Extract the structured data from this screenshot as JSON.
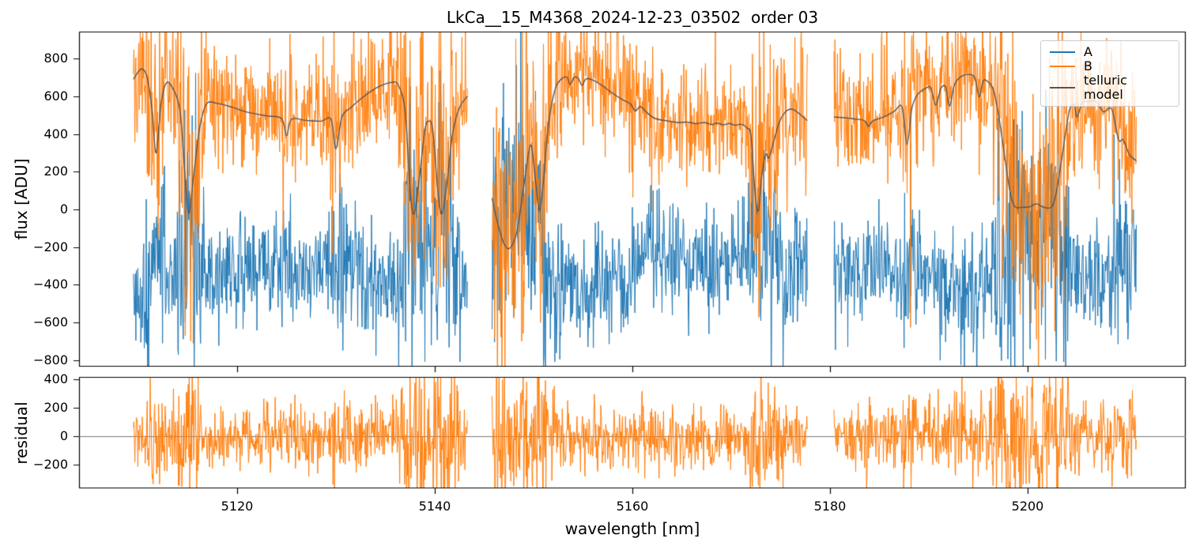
{
  "chart_data": {
    "type": "line",
    "title": "LkCa__15_M4368_2024-12-23_03502  order 03",
    "xlabel": "wavelength [nm]",
    "ylabel_top": "flux [ADU]",
    "ylabel_bottom": "residual",
    "xlim": [
      5104,
      5216
    ],
    "x_ticks": [
      5120,
      5140,
      5160,
      5180,
      5200
    ],
    "top_panel": {
      "ylim": [
        -834,
        943
      ],
      "y_ticks": [
        800,
        600,
        400,
        200,
        0,
        -200,
        -400,
        -600,
        -800
      ]
    },
    "bottom_panel": {
      "ylim": [
        -364,
        419
      ],
      "y_ticks": [
        400,
        200,
        0,
        -200
      ],
      "zero_line": true,
      "zero_line_color": "#777777"
    },
    "wavelength_segments_nm": [
      [
        5109.5,
        5143.3
      ],
      [
        5145.8,
        5177.7
      ],
      [
        5180.4,
        5211.0
      ]
    ],
    "legend": {
      "location": "upper right",
      "items": [
        {
          "label": "A",
          "color": "#1f77b4"
        },
        {
          "label": "B",
          "color": "#ff7f0e"
        },
        {
          "label": "telluric model",
          "color": "#555555"
        }
      ]
    },
    "series": [
      {
        "name": "A",
        "color": "#1f77b4",
        "kind": "noisy",
        "base": "mirror_telluric",
        "mirror_scale": -0.6,
        "mirror_offset": -10,
        "noise_sigma": 135
      },
      {
        "name": "B",
        "color": "#ff7f0e",
        "kind": "noisy",
        "base": "telluric",
        "noise_sigma": 150
      },
      {
        "name": "telluric model",
        "color": "#555555",
        "kind": "smooth"
      }
    ],
    "telluric_model_points_by_segment": [
      [
        [
          5109.5,
          690
        ],
        [
          5110.3,
          745
        ],
        [
          5110.9,
          700
        ],
        [
          5111.4,
          520
        ],
        [
          5111.8,
          300
        ],
        [
          5112.3,
          560
        ],
        [
          5112.8,
          668
        ],
        [
          5113.4,
          650
        ],
        [
          5114.2,
          530
        ],
        [
          5114.7,
          200
        ],
        [
          5115.1,
          -20
        ],
        [
          5115.6,
          180
        ],
        [
          5116.2,
          430
        ],
        [
          5116.9,
          560
        ],
        [
          5118,
          562
        ],
        [
          5119.5,
          542
        ],
        [
          5121,
          516
        ],
        [
          5123,
          496
        ],
        [
          5124.5,
          482
        ],
        [
          5125,
          390
        ],
        [
          5125.5,
          478
        ],
        [
          5127,
          472
        ],
        [
          5128.5,
          468
        ],
        [
          5129.5,
          478
        ],
        [
          5130,
          322
        ],
        [
          5130.6,
          490
        ],
        [
          5131.5,
          540
        ],
        [
          5132.5,
          586
        ],
        [
          5133.5,
          625
        ],
        [
          5134.5,
          655
        ],
        [
          5135.6,
          673
        ],
        [
          5136.3,
          660
        ],
        [
          5137,
          520
        ],
        [
          5137.5,
          105
        ],
        [
          5137.9,
          -25
        ],
        [
          5138.4,
          150
        ],
        [
          5139,
          420
        ],
        [
          5139.4,
          468
        ],
        [
          5139.8,
          420
        ],
        [
          5140.3,
          105
        ],
        [
          5140.7,
          -25
        ],
        [
          5141.2,
          125
        ],
        [
          5141.8,
          400
        ],
        [
          5142.5,
          540
        ],
        [
          5143.3,
          600
        ]
      ],
      [
        [
          5145.8,
          60
        ],
        [
          5146.3,
          -60
        ],
        [
          5147,
          -180
        ],
        [
          5147.6,
          -205
        ],
        [
          5148.3,
          -120
        ],
        [
          5149,
          120
        ],
        [
          5149.7,
          342
        ],
        [
          5150.2,
          150
        ],
        [
          5150.6,
          -8
        ],
        [
          5151,
          150
        ],
        [
          5151.5,
          450
        ],
        [
          5152.2,
          640
        ],
        [
          5152.9,
          695
        ],
        [
          5153.4,
          700
        ],
        [
          5153.7,
          662
        ],
        [
          5154.1,
          700
        ],
        [
          5154.5,
          697
        ],
        [
          5154.9,
          658
        ],
        [
          5155.3,
          692
        ],
        [
          5156,
          686
        ],
        [
          5157,
          655
        ],
        [
          5158,
          616
        ],
        [
          5159,
          582
        ],
        [
          5159.8,
          560
        ],
        [
          5160.3,
          522
        ],
        [
          5160.8,
          546
        ],
        [
          5161.5,
          512
        ],
        [
          5162.3,
          482
        ],
        [
          5163.5,
          470
        ],
        [
          5164.6,
          461
        ],
        [
          5165.5,
          463
        ],
        [
          5166.5,
          455
        ],
        [
          5167.3,
          461
        ],
        [
          5168,
          450
        ],
        [
          5168.6,
          458
        ],
        [
          5169.2,
          448
        ],
        [
          5169.8,
          456
        ],
        [
          5170.4,
          446
        ],
        [
          5171,
          452
        ],
        [
          5171.6,
          432
        ],
        [
          5172,
          390
        ],
        [
          5172.4,
          100
        ],
        [
          5172.75,
          -8
        ],
        [
          5173.1,
          180
        ],
        [
          5173.5,
          292
        ],
        [
          5173.8,
          272
        ],
        [
          5174.2,
          340
        ],
        [
          5174.8,
          452
        ],
        [
          5175.4,
          512
        ],
        [
          5176.1,
          532
        ],
        [
          5176.8,
          512
        ],
        [
          5177.7,
          470
        ]
      ],
      [
        [
          5180.4,
          490
        ],
        [
          5181.5,
          486
        ],
        [
          5182.5,
          480
        ],
        [
          5183.5,
          470
        ],
        [
          5183.9,
          440
        ],
        [
          5184.3,
          468
        ],
        [
          5185.5,
          492
        ],
        [
          5186.5,
          520
        ],
        [
          5187.3,
          542
        ],
        [
          5187.8,
          345
        ],
        [
          5188.3,
          540
        ],
        [
          5188.9,
          612
        ],
        [
          5189.6,
          640
        ],
        [
          5190.2,
          645
        ],
        [
          5190.7,
          552
        ],
        [
          5191.2,
          640
        ],
        [
          5191.7,
          650
        ],
        [
          5192.1,
          548
        ],
        [
          5192.6,
          662
        ],
        [
          5193.3,
          706
        ],
        [
          5194.2,
          715
        ],
        [
          5194.7,
          692
        ],
        [
          5195.1,
          596
        ],
        [
          5195.5,
          682
        ],
        [
          5196,
          676
        ],
        [
          5196.5,
          640
        ],
        [
          5197,
          520
        ],
        [
          5197.6,
          310
        ],
        [
          5198.2,
          100
        ],
        [
          5198.7,
          15
        ],
        [
          5199.5,
          12
        ],
        [
          5200.2,
          13
        ],
        [
          5200.9,
          30
        ],
        [
          5201.6,
          12
        ],
        [
          5202.5,
          16
        ],
        [
          5203,
          120
        ],
        [
          5203.6,
          320
        ],
        [
          5204.2,
          520
        ],
        [
          5204.7,
          556
        ],
        [
          5205,
          490
        ],
        [
          5205.5,
          565
        ],
        [
          5206,
          572
        ],
        [
          5206.8,
          576
        ],
        [
          5207.3,
          546
        ],
        [
          5207.7,
          516
        ],
        [
          5208.2,
          536
        ],
        [
          5208.6,
          520
        ],
        [
          5209.2,
          370
        ],
        [
          5209.6,
          372
        ],
        [
          5209.9,
          345
        ],
        [
          5210.3,
          290
        ],
        [
          5211,
          258
        ]
      ]
    ],
    "residual_series": {
      "name": "residual",
      "color": "#ff7f0e",
      "base": 0,
      "noise_sigma": 105
    },
    "noise": {
      "seed": 20241223,
      "points_per_nm": 20,
      "boost_threshold_flux": 400,
      "boost_scale": 1.15,
      "max_depth_factor": 1.5,
      "gradient_boost_divisor": 250,
      "max_gradient_boost": 1.2,
      "max_total_boost": 2.8
    }
  }
}
